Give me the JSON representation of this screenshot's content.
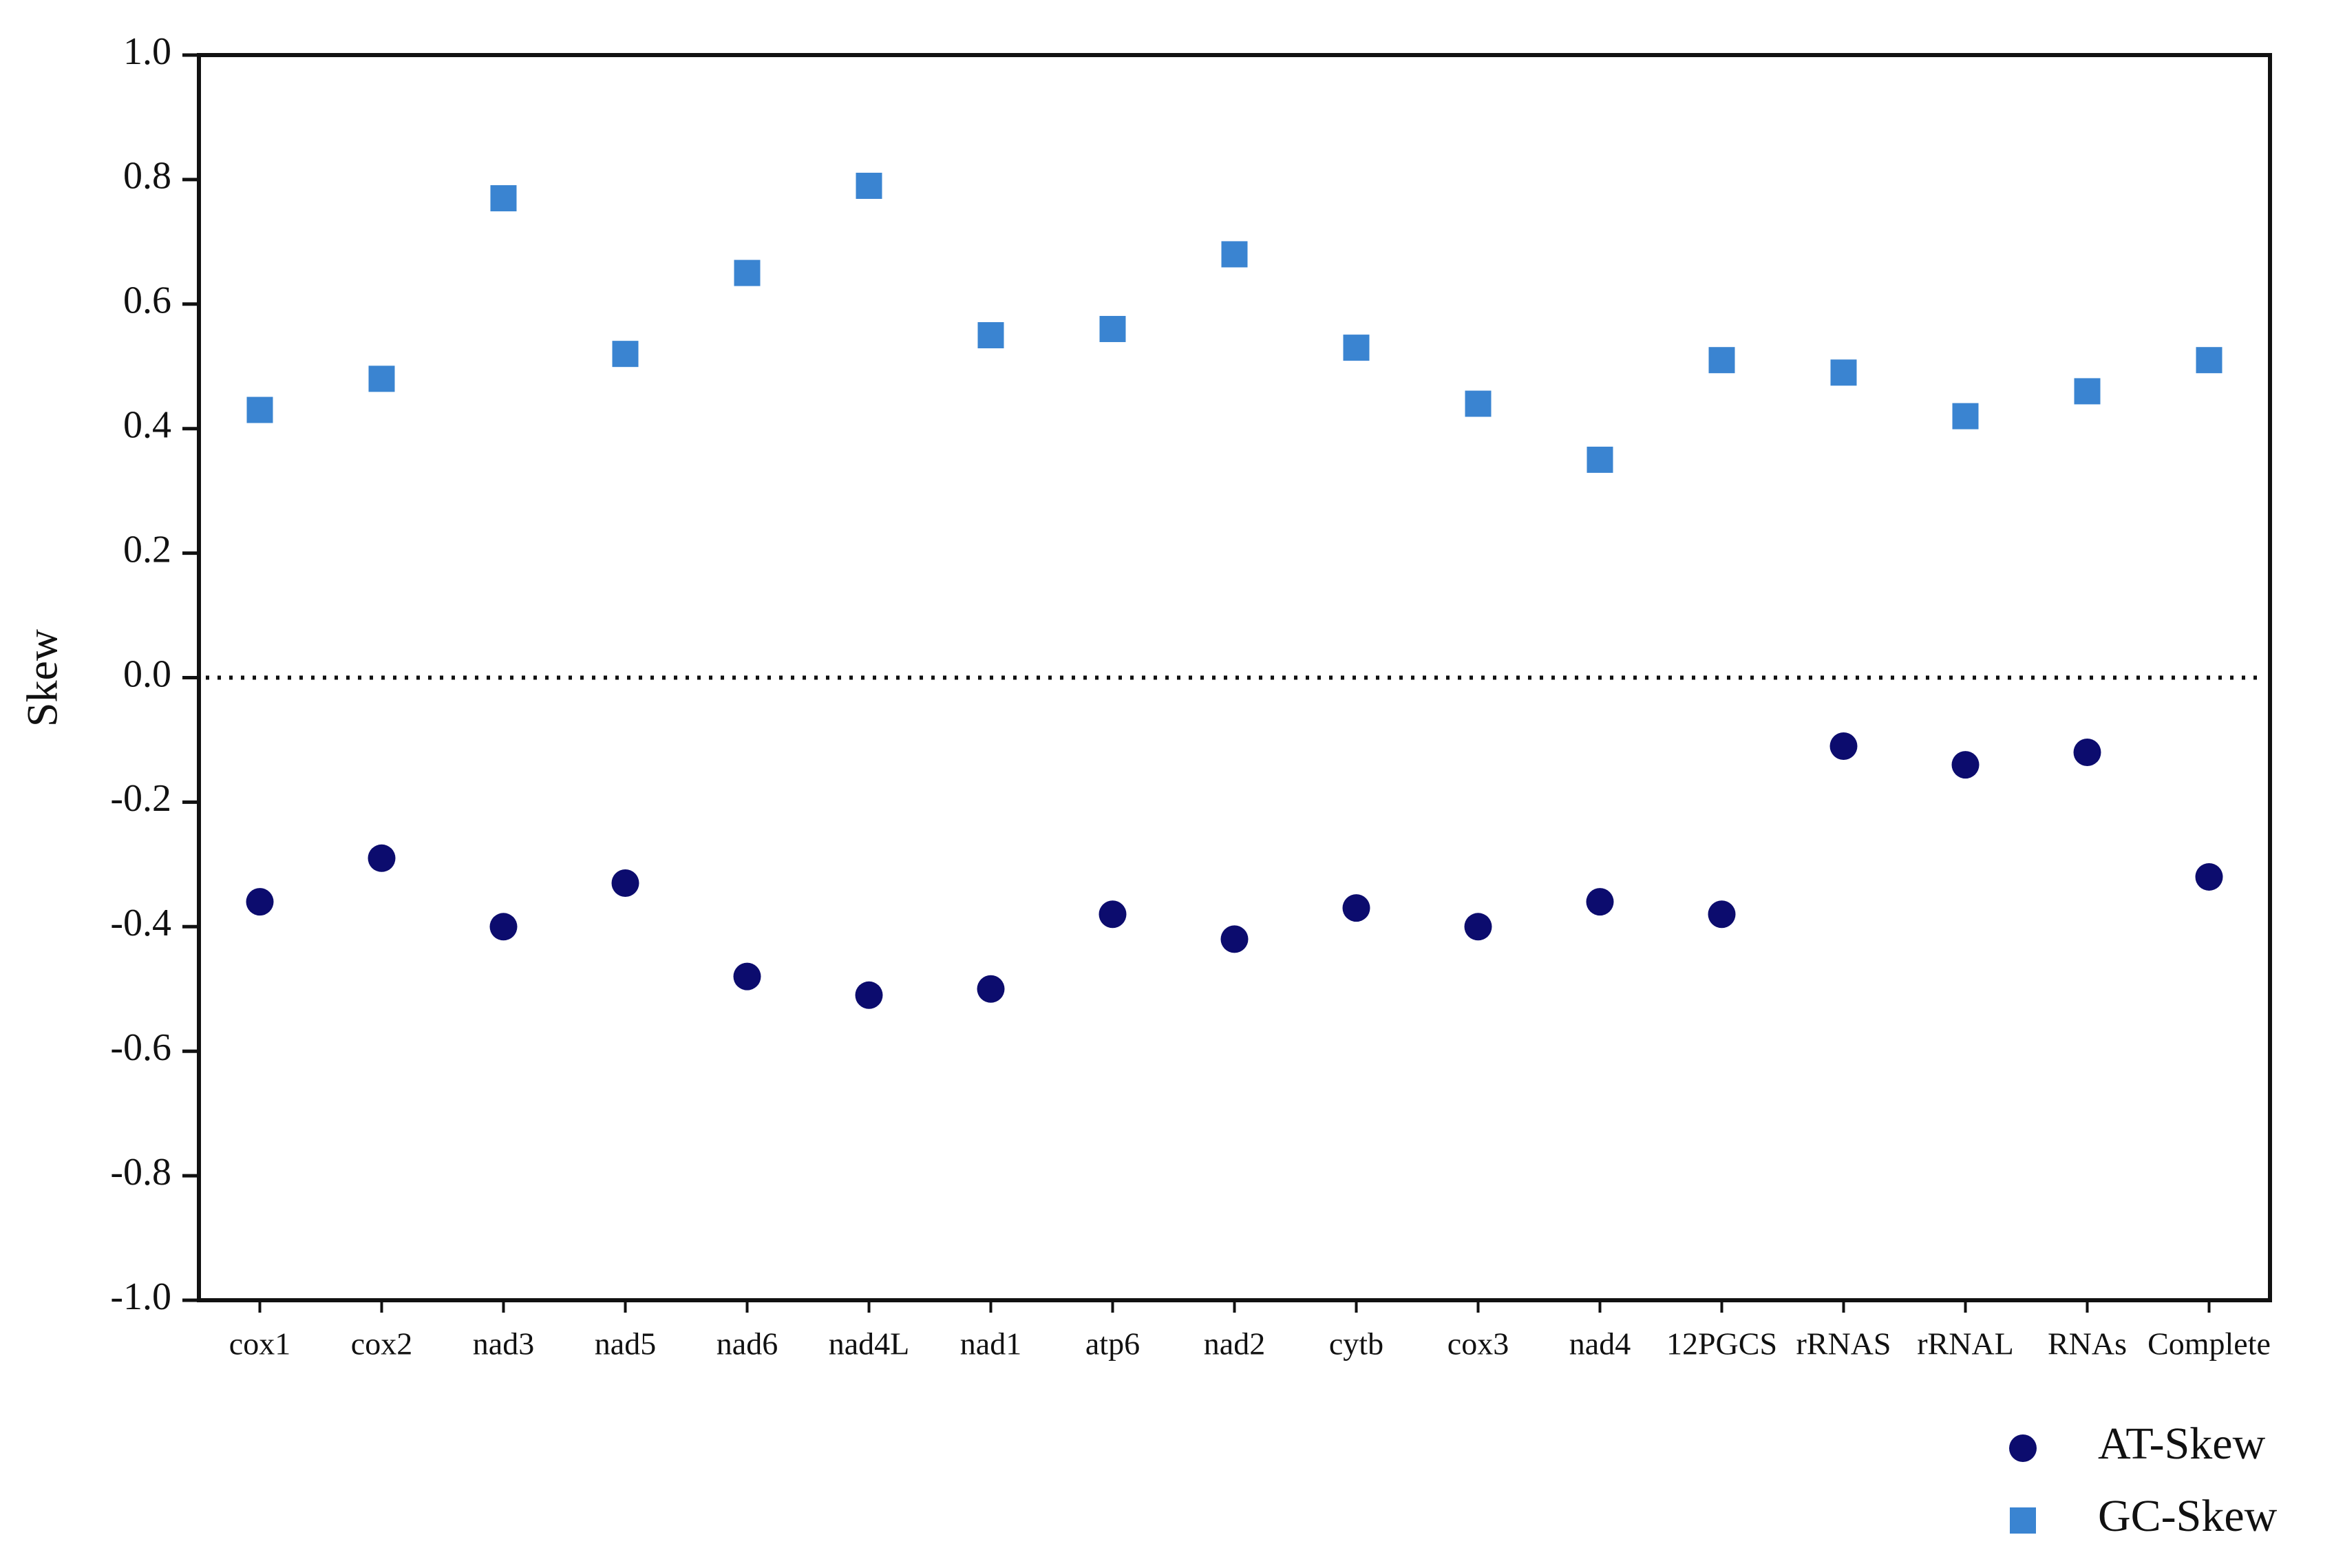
{
  "chart_data": {
    "type": "scatter",
    "y_label": "Skew",
    "categories": [
      "cox1",
      "cox2",
      "nad3",
      "nad5",
      "nad6",
      "nad4L",
      "nad1",
      "atp6",
      "nad2",
      "cytb",
      "cox3",
      "nad4",
      "12PGCS",
      "rRNAS",
      "rRNAL",
      "RNAs",
      "Complete"
    ],
    "series": [
      {
        "name": "AT-Skew",
        "color": "#0c0c6e",
        "marker": "circle",
        "values": [
          -0.36,
          -0.29,
          -0.4,
          -0.33,
          -0.48,
          -0.51,
          -0.5,
          -0.38,
          -0.42,
          -0.37,
          -0.4,
          -0.36,
          -0.38,
          -0.11,
          -0.14,
          -0.12,
          -0.32
        ]
      },
      {
        "name": "GC-Skew",
        "color": "#3a84d1",
        "marker": "square",
        "values": [
          0.43,
          0.48,
          0.77,
          0.52,
          0.65,
          0.79,
          0.55,
          0.56,
          0.68,
          0.53,
          0.44,
          0.35,
          0.51,
          0.49,
          0.42,
          0.46,
          0.51
        ]
      }
    ],
    "ylim": [
      -1.0,
      1.0
    ],
    "yticks": [
      {
        "value": -1.0,
        "label": "-1.0"
      },
      -0.8,
      -0.6,
      -0.4,
      -0.2,
      {
        "value": 0,
        "label": "0.0"
      },
      0.2,
      0.4,
      0.6,
      0.8,
      {
        "value": 1.0,
        "label": "1.0"
      }
    ],
    "grid": false,
    "legend": "lower right"
  }
}
